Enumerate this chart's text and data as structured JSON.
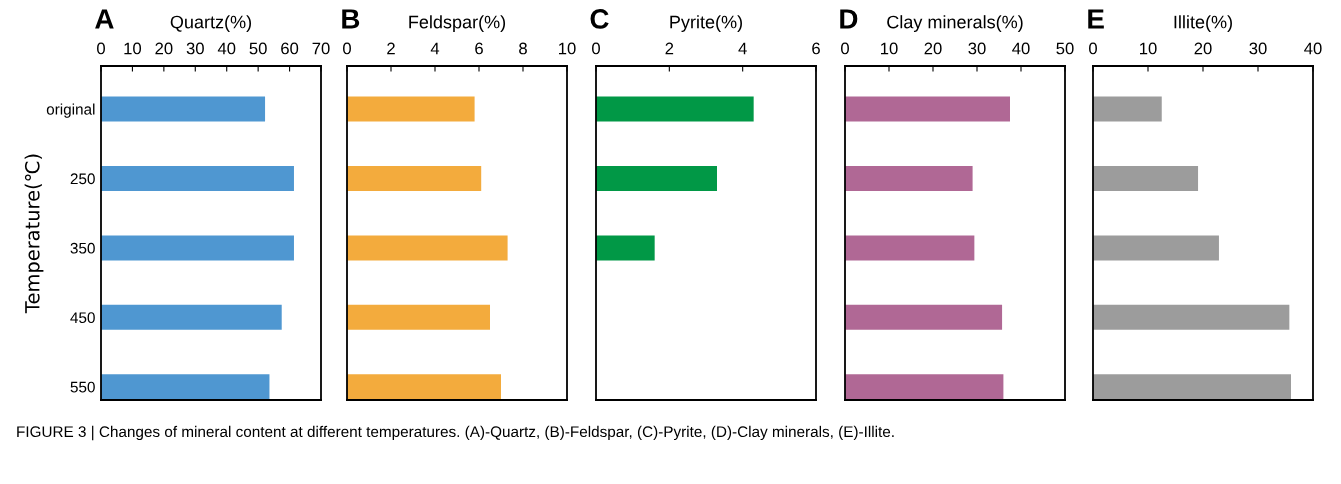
{
  "chart_data": [
    {
      "type": "bar",
      "orientation": "horizontal",
      "title": "A",
      "xlabel": "Quartz(%)",
      "ylabel": "Temperature(℃)",
      "categories": [
        "original",
        "250",
        "350",
        "450",
        "550"
      ],
      "values": [
        52.2,
        61.4,
        61.4,
        57.5,
        53.6
      ],
      "color": "#4f97d1",
      "xlim": [
        0,
        70
      ],
      "xticks": [
        0,
        10,
        20,
        30,
        40,
        50,
        60,
        70
      ],
      "grid": false,
      "annotations": [
        "FIGURE 3 | Changes of mineral content at different temperatures. (A)-Quartz, (B)-Feldspar, (C)-Pyrite, (D)-Clay minerals, (E)-Illite."
      ]
    },
    {
      "type": "bar",
      "orientation": "horizontal",
      "title": "B",
      "xlabel": "Feldspar(%)",
      "categories": [
        null,
        null,
        null,
        null,
        null
      ],
      "values": [
        5.8,
        6.1,
        7.3,
        6.5,
        7.0
      ],
      "color": "#f3ab3d",
      "xlim": [
        0,
        10
      ],
      "xticks": [
        0,
        2,
        4,
        6,
        8,
        10
      ],
      "grid": false,
      "tick_labels": "x"
    },
    {
      "type": "bar",
      "orientation": "horizontal",
      "title": "C",
      "xlabel": "Pyrite(%)",
      "categories": [
        null,
        null,
        null,
        null,
        null
      ],
      "values": [
        4.3,
        3.3,
        1.6,
        null,
        null
      ],
      "color": "#019846",
      "xlim": [
        0,
        6
      ],
      "xticks": [
        0,
        2,
        4,
        6
      ],
      "grid": false,
      "tick_labels": "x"
    },
    {
      "type": "bar",
      "orientation": "horizontal",
      "title": "D",
      "xlabel": "Clay minerals(%)",
      "categories": [
        null,
        null,
        null,
        null,
        null
      ],
      "values": [
        37.5,
        29.0,
        29.4,
        35.7,
        36.0
      ],
      "color": "#b06895",
      "xlim": [
        0,
        50
      ],
      "xticks": [
        0,
        10,
        20,
        30,
        40,
        50
      ],
      "grid": false,
      "tick_labels": "x"
    },
    {
      "type": "bar",
      "orientation": "horizontal",
      "title": "E",
      "xlabel": "Illite(%)",
      "categories": [
        null,
        null,
        null,
        null,
        null
      ],
      "values": [
        12.5,
        19.1,
        22.9,
        35.7,
        36.0
      ],
      "color": "#9c9c9c",
      "xlim": [
        0,
        40
      ],
      "xticks": [
        0,
        10,
        20,
        30,
        40
      ],
      "grid": false,
      "tick_labels": "x"
    }
  ]
}
